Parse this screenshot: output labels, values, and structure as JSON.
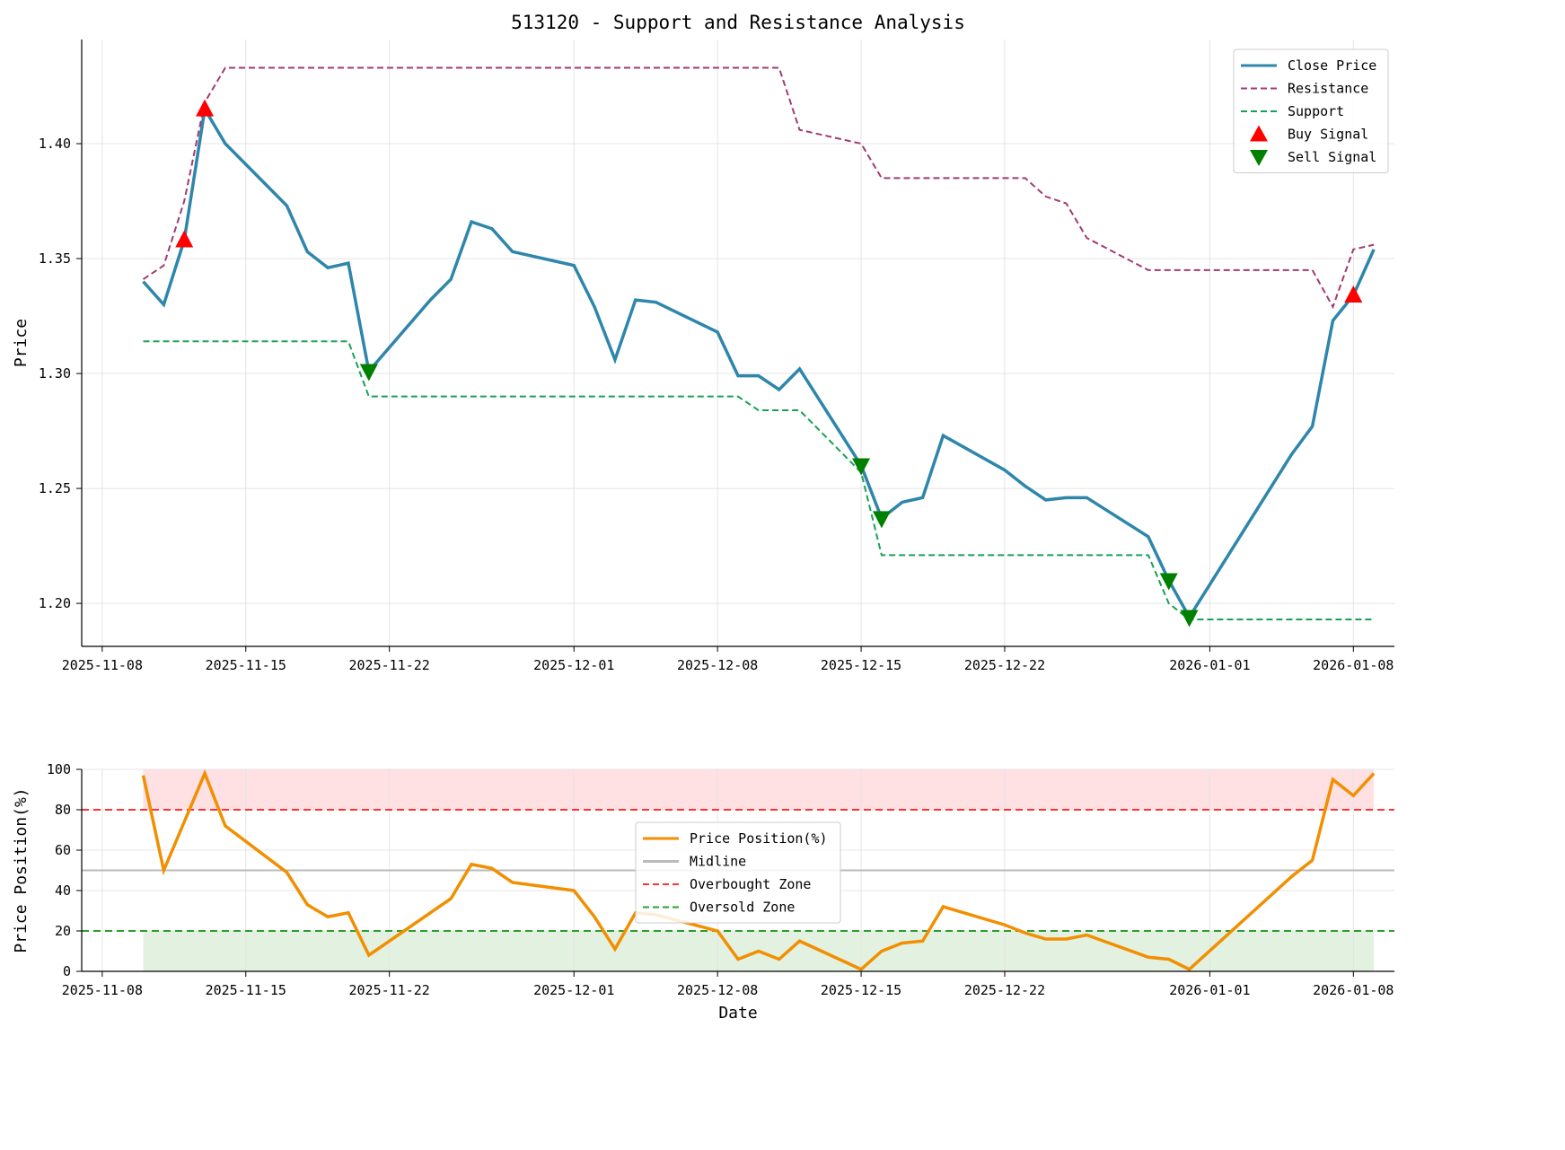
{
  "chart_data": [
    {
      "type": "line",
      "title": "513120 - Support and Resistance Analysis",
      "xlabel": "",
      "ylabel": "Price",
      "ylim": [
        1.1813,
        1.4453
      ],
      "xlim": [
        "2025-11-07",
        "2026-01-10"
      ],
      "yticks": [
        "1.20",
        "1.25",
        "1.30",
        "1.35",
        "1.40"
      ],
      "xticks": [
        "2025-11-08",
        "2025-11-15",
        "2025-11-22",
        "2025-12-01",
        "2025-12-08",
        "2025-12-15",
        "2025-12-22",
        "2026-01-01",
        "2026-01-08"
      ],
      "grid": true,
      "legend_position": "top-right",
      "x": [
        "2025-11-10",
        "2025-11-11",
        "2025-11-12",
        "2025-11-13",
        "2025-11-14",
        "2025-11-17",
        "2025-11-18",
        "2025-11-19",
        "2025-11-20",
        "2025-11-21",
        "2025-11-24",
        "2025-11-25",
        "2025-11-26",
        "2025-11-27",
        "2025-11-28",
        "2025-12-01",
        "2025-12-02",
        "2025-12-03",
        "2025-12-04",
        "2025-12-05",
        "2025-12-08",
        "2025-12-09",
        "2025-12-10",
        "2025-12-11",
        "2025-12-12",
        "2025-12-15",
        "2025-12-16",
        "2025-12-17",
        "2025-12-18",
        "2025-12-19",
        "2025-12-22",
        "2025-12-23",
        "2025-12-24",
        "2025-12-25",
        "2025-12-26",
        "2025-12-29",
        "2025-12-30",
        "2025-12-31",
        "2026-01-05",
        "2026-01-06",
        "2026-01-07",
        "2026-01-08",
        "2026-01-09"
      ],
      "series": [
        {
          "name": "Close Price",
          "color": "#2E86AB",
          "style": "solid",
          "values": [
            1.34,
            1.33,
            1.358,
            1.415,
            1.4,
            1.373,
            1.353,
            1.346,
            1.348,
            1.301,
            1.332,
            1.341,
            1.366,
            1.363,
            1.353,
            1.347,
            1.329,
            1.306,
            1.332,
            1.331,
            1.318,
            1.299,
            1.299,
            1.293,
            1.302,
            1.26,
            1.237,
            1.244,
            1.246,
            1.273,
            1.258,
            1.251,
            1.245,
            1.246,
            1.246,
            1.229,
            1.21,
            1.194,
            1.265,
            1.277,
            1.323,
            1.334,
            1.354
          ]
        },
        {
          "name": "Resistance",
          "color": "#A23B72",
          "style": "dashed",
          "values": [
            1.341,
            1.347,
            1.375,
            1.418,
            1.433,
            1.433,
            1.433,
            1.433,
            1.433,
            1.433,
            1.433,
            1.433,
            1.433,
            1.433,
            1.433,
            1.433,
            1.433,
            1.433,
            1.433,
            1.433,
            1.433,
            1.433,
            1.433,
            1.433,
            1.406,
            1.4,
            1.385,
            1.385,
            1.385,
            1.385,
            1.385,
            1.385,
            1.377,
            1.374,
            1.359,
            1.345,
            1.345,
            1.345,
            1.345,
            1.345,
            1.329,
            1.354,
            1.356
          ]
        },
        {
          "name": "Support",
          "color": "#18A058",
          "style": "dashed",
          "values": [
            1.314,
            1.314,
            1.314,
            1.314,
            1.314,
            1.314,
            1.314,
            1.314,
            1.314,
            1.29,
            1.29,
            1.29,
            1.29,
            1.29,
            1.29,
            1.29,
            1.29,
            1.29,
            1.29,
            1.29,
            1.29,
            1.29,
            1.284,
            1.284,
            1.284,
            1.257,
            1.221,
            1.221,
            1.221,
            1.221,
            1.221,
            1.221,
            1.221,
            1.221,
            1.221,
            1.221,
            1.2,
            1.193,
            1.193,
            1.193,
            1.193,
            1.193,
            1.193
          ]
        }
      ],
      "markers": [
        {
          "name": "Buy Signal",
          "color": "#FF0000",
          "shape": "triangle-up",
          "points": [
            [
              "2025-11-12",
              1.358
            ],
            [
              "2025-11-13",
              1.415
            ],
            [
              "2026-01-08",
              1.334
            ]
          ]
        },
        {
          "name": "Sell Signal",
          "color": "#008000",
          "shape": "triangle-down",
          "points": [
            [
              "2025-11-21",
              1.301
            ],
            [
              "2025-12-15",
              1.26
            ],
            [
              "2025-12-16",
              1.237
            ],
            [
              "2025-12-30",
              1.21
            ],
            [
              "2025-12-31",
              1.194
            ]
          ]
        }
      ]
    },
    {
      "type": "line",
      "title": "",
      "xlabel": "Date",
      "ylabel": "Price Position(%)",
      "ylim": [
        0,
        100
      ],
      "xlim": [
        "2025-11-07",
        "2026-01-10"
      ],
      "yticks": [
        "0",
        "20",
        "40",
        "60",
        "80",
        "100"
      ],
      "xticks": [
        "2025-11-08",
        "2025-11-15",
        "2025-11-22",
        "2025-12-01",
        "2025-12-08",
        "2025-12-15",
        "2025-12-22",
        "2026-01-01",
        "2026-01-08"
      ],
      "grid": true,
      "legend_position": "center",
      "series": [
        {
          "name": "Price Position(%)",
          "color": "#F18F01",
          "style": "solid",
          "values": [
            97,
            50,
            74,
            98,
            72,
            49,
            33,
            27,
            29,
            8,
            29,
            36,
            53,
            51,
            44,
            40,
            27,
            11,
            29,
            28,
            20,
            6,
            10,
            6,
            15,
            1,
            10,
            14,
            15,
            32,
            23,
            19,
            16,
            16,
            18,
            7,
            6,
            1,
            47,
            55,
            95,
            87,
            98
          ]
        }
      ],
      "hlines": [
        {
          "name": "Midline",
          "value": 50,
          "color": "#BBBBBB",
          "style": "solid"
        },
        {
          "name": "Overbought Zone",
          "value": 80,
          "color": "#FF3333",
          "style": "dashed"
        },
        {
          "name": "Oversold Zone",
          "value": 20,
          "color": "#2E9E2E",
          "style": "dashed"
        }
      ],
      "bands": [
        {
          "from": 80,
          "to": 100,
          "color": "#FFE0E3"
        },
        {
          "from": 0,
          "to": 20,
          "color": "#E3F1E0"
        }
      ]
    }
  ]
}
